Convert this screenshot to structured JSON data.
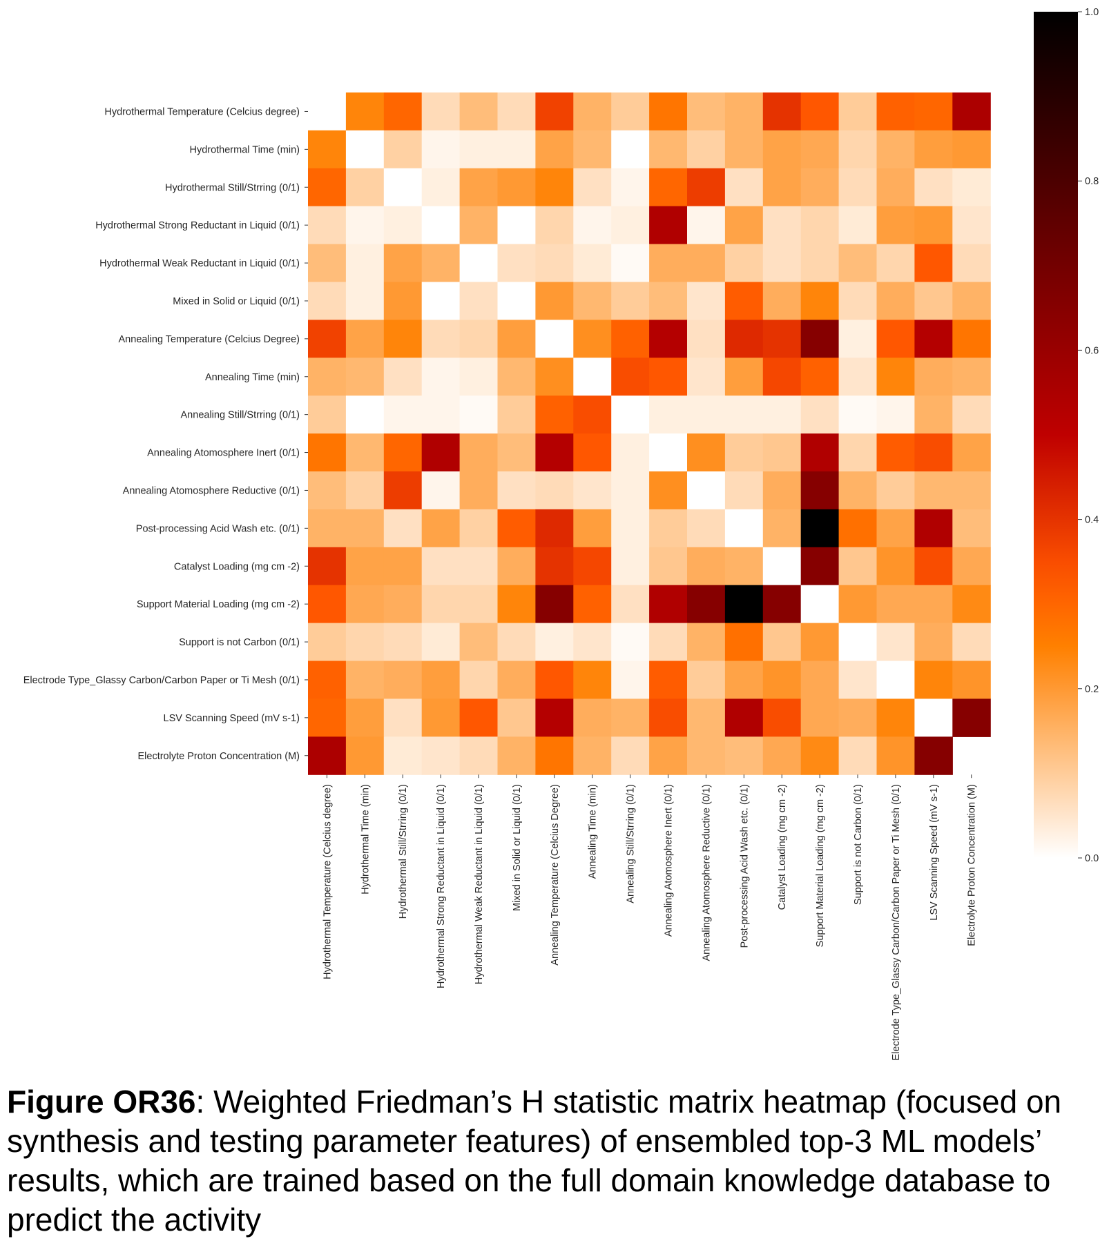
{
  "chart_data": {
    "type": "heatmap",
    "title": "",
    "xlabel": "",
    "ylabel": "",
    "row_labels": [
      "Hydrothermal Temperature (Celcius degree)",
      "Hydrothermal Time (min)",
      "Hydrothermal Still/Strring (0/1)",
      "Hydrothermal Strong Reductant in Liquid (0/1)",
      "Hydrothermal Weak Reductant in Liquid (0/1)",
      "Mixed in Solid or Liquid (0/1)",
      "Annealing Temperature (Celcius Degree)",
      "Annealing Time (min)",
      "Annealing Still/Strring (0/1)",
      "Annealing Atomosphere Inert (0/1)",
      "Annealing Atomosphere Reductive (0/1)",
      "Post-processing Acid Wash etc. (0/1)",
      "Catalyst Loading (mg cm -2)",
      "Support Material Loading (mg cm -2)",
      "Support is not Carbon (0/1)",
      "Electrode Type_Glassy Carbon/Carbon Paper or Ti Mesh (0/1)",
      "LSV Scanning Speed (mV s-1)",
      "Electrolyte Proton Concentration (M)"
    ],
    "col_labels": [
      "Hydrothermal Temperature (Celcius degree)",
      "Hydrothermal Time (min)",
      "Hydrothermal Still/Strring (0/1)",
      "Hydrothermal Strong Reductant in Liquid (0/1)",
      "Hydrothermal Weak Reductant in Liquid (0/1)",
      "Mixed in Solid or Liquid (0/1)",
      "Annealing Temperature (Celcius Degree)",
      "Annealing Time (min)",
      "Annealing Still/Strring (0/1)",
      "Annealing Atomosphere Inert (0/1)",
      "Annealing Atomosphere Reductive (0/1)",
      "Post-processing Acid Wash etc. (0/1)",
      "Catalyst Loading (mg cm -2)",
      "Support Material Loading (mg cm -2)",
      "Support is not Carbon (0/1)",
      "Electrode Type_Glassy Carbon/Carbon Paper or Ti Mesh (0/1)",
      "LSV Scanning Speed (mV s-1)",
      "Electrolyte Proton Concentration (M)"
    ],
    "values": [
      [
        null,
        0.24,
        0.3,
        0.07,
        0.13,
        0.07,
        0.37,
        0.15,
        0.1,
        0.27,
        0.13,
        0.15,
        0.4,
        0.33,
        0.1,
        0.31,
        0.3,
        0.55
      ],
      [
        0.24,
        0.0,
        0.09,
        0.02,
        0.03,
        0.03,
        0.18,
        0.14,
        0.0,
        0.14,
        0.09,
        0.15,
        0.18,
        0.17,
        0.08,
        0.15,
        0.19,
        0.2
      ],
      [
        0.3,
        0.09,
        0.0,
        0.03,
        0.18,
        0.2,
        0.24,
        0.06,
        0.02,
        0.3,
        0.38,
        0.06,
        0.18,
        0.16,
        0.07,
        0.16,
        0.06,
        0.04
      ],
      [
        0.07,
        0.02,
        0.03,
        0.0,
        0.15,
        0.0,
        0.08,
        0.02,
        0.03,
        0.54,
        0.02,
        0.18,
        0.06,
        0.08,
        0.04,
        0.19,
        0.2,
        0.05
      ],
      [
        0.13,
        0.03,
        0.18,
        0.15,
        0.0,
        0.06,
        0.07,
        0.04,
        0.01,
        0.16,
        0.16,
        0.09,
        0.06,
        0.08,
        0.13,
        0.08,
        0.33,
        0.07
      ],
      [
        0.07,
        0.03,
        0.2,
        0.0,
        0.06,
        0.0,
        0.2,
        0.14,
        0.1,
        0.13,
        0.05,
        0.32,
        0.16,
        0.24,
        0.07,
        0.16,
        0.11,
        0.15
      ],
      [
        0.37,
        0.18,
        0.24,
        0.07,
        0.08,
        0.19,
        0.0,
        0.22,
        0.31,
        0.53,
        0.06,
        0.42,
        0.4,
        0.65,
        0.03,
        0.33,
        0.53,
        0.27
      ],
      [
        0.15,
        0.14,
        0.06,
        0.02,
        0.03,
        0.14,
        0.22,
        0.0,
        0.35,
        0.33,
        0.05,
        0.19,
        0.36,
        0.31,
        0.05,
        0.24,
        0.16,
        0.15
      ],
      [
        0.1,
        0.0,
        0.02,
        0.02,
        0.01,
        0.1,
        0.31,
        0.35,
        0.0,
        0.03,
        0.03,
        0.03,
        0.03,
        0.06,
        0.01,
        0.02,
        0.15,
        0.07
      ],
      [
        0.27,
        0.14,
        0.3,
        0.54,
        0.16,
        0.13,
        0.53,
        0.33,
        0.03,
        0.0,
        0.22,
        0.1,
        0.11,
        0.54,
        0.08,
        0.32,
        0.35,
        0.18
      ],
      [
        0.13,
        0.09,
        0.38,
        0.02,
        0.16,
        0.06,
        0.07,
        0.05,
        0.03,
        0.22,
        0.0,
        0.07,
        0.16,
        0.65,
        0.15,
        0.1,
        0.14,
        0.14
      ],
      [
        0.15,
        0.15,
        0.06,
        0.18,
        0.09,
        0.32,
        0.42,
        0.19,
        0.03,
        0.1,
        0.07,
        0.0,
        0.15,
        1.0,
        0.28,
        0.18,
        0.54,
        0.13
      ],
      [
        0.4,
        0.18,
        0.18,
        0.06,
        0.06,
        0.16,
        0.4,
        0.36,
        0.03,
        0.11,
        0.16,
        0.15,
        0.0,
        0.65,
        0.11,
        0.21,
        0.35,
        0.17
      ],
      [
        0.33,
        0.17,
        0.16,
        0.08,
        0.08,
        0.24,
        0.65,
        0.31,
        0.06,
        0.54,
        0.65,
        1.0,
        0.65,
        0.0,
        0.2,
        0.17,
        0.17,
        0.23
      ],
      [
        0.1,
        0.08,
        0.07,
        0.04,
        0.13,
        0.07,
        0.03,
        0.05,
        0.01,
        0.07,
        0.15,
        0.28,
        0.11,
        0.2,
        0.0,
        0.05,
        0.16,
        0.07
      ],
      [
        0.31,
        0.15,
        0.16,
        0.19,
        0.08,
        0.16,
        0.33,
        0.24,
        0.02,
        0.32,
        0.1,
        0.18,
        0.21,
        0.17,
        0.05,
        0.0,
        0.24,
        0.21
      ],
      [
        0.3,
        0.19,
        0.06,
        0.2,
        0.33,
        0.11,
        0.53,
        0.16,
        0.15,
        0.35,
        0.14,
        0.54,
        0.35,
        0.17,
        0.16,
        0.24,
        0.0,
        0.65
      ],
      [
        0.55,
        0.2,
        0.04,
        0.05,
        0.07,
        0.15,
        0.27,
        0.15,
        0.07,
        0.18,
        0.14,
        0.13,
        0.17,
        0.23,
        0.07,
        0.21,
        0.65,
        null
      ]
    ],
    "vmin": 0.0,
    "vmax": 1.0,
    "colormap": "gist_heat_r",
    "colorbar": {
      "position": "right",
      "ticks": [
        0.0,
        0.2,
        0.4,
        0.6,
        0.8,
        1.0
      ],
      "tick_labels": [
        "0.0",
        "0.2",
        "0.4",
        "0.6",
        "0.8",
        "1.0"
      ]
    },
    "grid": false
  },
  "caption": {
    "label": "Figure OR36",
    "text": ": Weighted Friedman’s H statistic matrix heatmap (focused on synthesis and testing parameter features) of ensembled top-3 ML models’ results, which are trained based on the full domain knowledge database to predict the activity"
  }
}
